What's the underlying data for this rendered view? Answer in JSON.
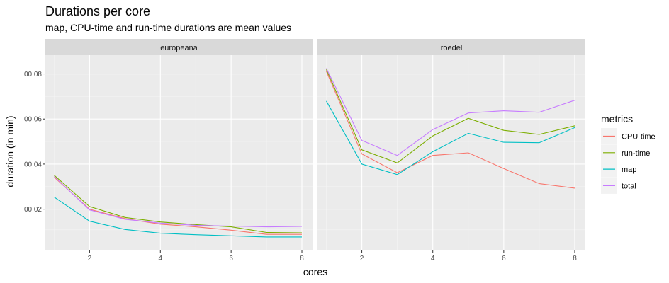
{
  "chart_data": {
    "type": "line",
    "title": "Durations per core",
    "subtitle": "map, CPU-time and run-time durations are mean values",
    "xlabel": "cores",
    "ylabel": "duration (in min)",
    "x": [
      1,
      2,
      3,
      4,
      5,
      6,
      7,
      8
    ],
    "xlim": [
      0.75,
      8.3
    ],
    "xticks": [
      2,
      4,
      6,
      8
    ],
    "ylim_seconds": [
      0.1,
      5.3
    ],
    "yticks_seconds": [
      1.2,
      2.4,
      3.6,
      4.8
    ],
    "ytick_labels": [
      "00:02",
      "00:04",
      "00:06",
      "00:08"
    ],
    "grid": true,
    "legend": {
      "title": "metrics",
      "placement": "right",
      "entries": [
        "CPU-time",
        "run-time",
        "map",
        "total"
      ]
    },
    "colors": {
      "CPU-time": "#F8766D",
      "run-time": "#7CAE00",
      "map": "#00BFC4",
      "total": "#C77CFF"
    },
    "panels": [
      {
        "name": "europeana",
        "series": [
          {
            "name": "CPU-time",
            "values": [
              2.05,
              1.2,
              0.95,
              0.8,
              0.73,
              0.64,
              0.53,
              0.53
            ]
          },
          {
            "name": "run-time",
            "values": [
              2.1,
              1.27,
              0.98,
              0.86,
              0.79,
              0.73,
              0.58,
              0.57
            ]
          },
          {
            "name": "map",
            "values": [
              1.52,
              0.88,
              0.66,
              0.56,
              0.52,
              0.49,
              0.46,
              0.46
            ]
          },
          {
            "name": "total",
            "values": [
              2.07,
              1.18,
              0.93,
              0.83,
              0.77,
              0.75,
              0.73,
              0.74
            ]
          }
        ]
      },
      {
        "name": "roedel",
        "series": [
          {
            "name": "CPU-time",
            "values": [
              4.87,
              2.67,
              2.17,
              2.63,
              2.7,
              2.28,
              1.88,
              1.76
            ]
          },
          {
            "name": "run-time",
            "values": [
              4.92,
              2.78,
              2.43,
              3.15,
              3.62,
              3.3,
              3.19,
              3.42
            ]
          },
          {
            "name": "map",
            "values": [
              4.08,
              2.4,
              2.12,
              2.73,
              3.22,
              2.98,
              2.97,
              3.37
            ]
          },
          {
            "name": "total",
            "values": [
              4.95,
              3.03,
              2.63,
              3.32,
              3.76,
              3.82,
              3.78,
              4.1
            ]
          }
        ]
      }
    ]
  }
}
